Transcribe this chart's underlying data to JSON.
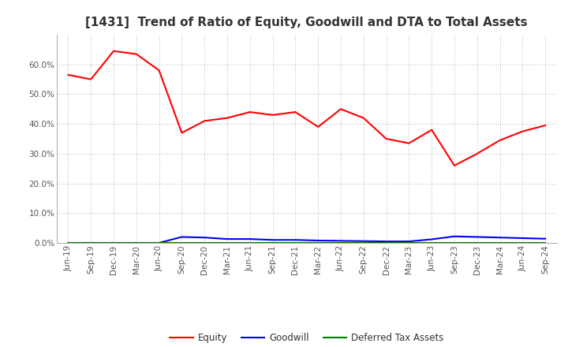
{
  "title": "[1431]  Trend of Ratio of Equity, Goodwill and DTA to Total Assets",
  "x_labels": [
    "Jun-19",
    "Sep-19",
    "Dec-19",
    "Mar-20",
    "Jun-20",
    "Sep-20",
    "Dec-20",
    "Mar-21",
    "Jun-21",
    "Sep-21",
    "Dec-21",
    "Mar-22",
    "Jun-22",
    "Sep-22",
    "Dec-22",
    "Mar-23",
    "Jun-23",
    "Sep-23",
    "Dec-23",
    "Mar-24",
    "Jun-24",
    "Sep-24"
  ],
  "equity": [
    0.565,
    0.55,
    0.645,
    0.635,
    0.58,
    0.37,
    0.41,
    0.42,
    0.44,
    0.43,
    0.44,
    0.39,
    0.45,
    0.42,
    0.35,
    0.335,
    0.38,
    0.26,
    0.3,
    0.345,
    0.375,
    0.395
  ],
  "goodwill": [
    0.0,
    0.0,
    0.0,
    0.0,
    0.0,
    0.02,
    0.018,
    0.013,
    0.013,
    0.01,
    0.01,
    0.008,
    0.007,
    0.006,
    0.005,
    0.005,
    0.012,
    0.022,
    0.02,
    0.018,
    0.016,
    0.014
  ],
  "dta": [
    0.0,
    0.0,
    0.0,
    0.0,
    0.0,
    0.0,
    0.0,
    0.0,
    0.0,
    0.0,
    0.0,
    0.0,
    0.0,
    0.0,
    0.0,
    0.0,
    0.0,
    0.0,
    0.0,
    0.0,
    0.0,
    0.0
  ],
  "equity_color": "#FF0000",
  "goodwill_color": "#0000FF",
  "dta_color": "#008000",
  "ylim": [
    0.0,
    0.7
  ],
  "yticks": [
    0.0,
    0.1,
    0.2,
    0.3,
    0.4,
    0.5,
    0.6
  ],
  "background_color": "#FFFFFF",
  "grid_color": "#AAAAAA",
  "title_fontsize": 11,
  "tick_fontsize": 7.5,
  "legend_labels": [
    "Equity",
    "Goodwill",
    "Deferred Tax Assets"
  ]
}
